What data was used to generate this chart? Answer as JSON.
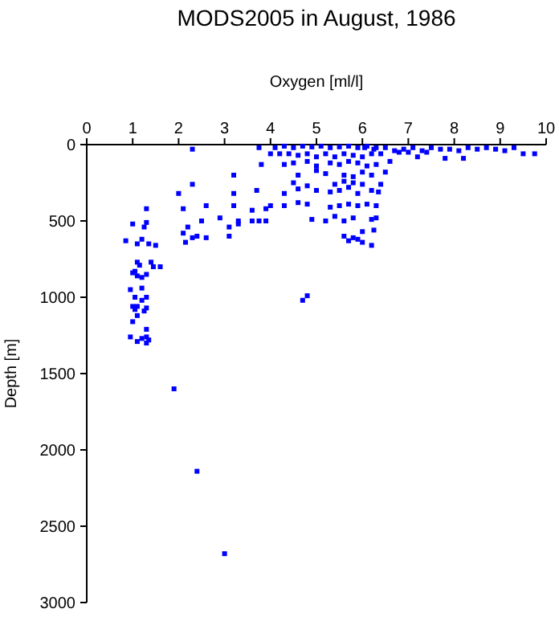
{
  "chart_data": {
    "type": "scatter",
    "title": "MODS2005 in August, 1986",
    "xlabel": "Oxygen [ml/l]",
    "ylabel": "Depth [m]",
    "xlim": [
      0,
      10
    ],
    "xticks": [
      0,
      1,
      2,
      3,
      4,
      5,
      6,
      7,
      8,
      9,
      10
    ],
    "ylim": [
      3000,
      0
    ],
    "yticks": [
      0,
      500,
      1000,
      1500,
      2000,
      2500,
      3000
    ],
    "grid": false,
    "marker": "square",
    "series": [
      {
        "color": "#0000ff",
        "x": [
          1.0,
          0.85,
          1.1,
          1.2,
          1.35,
          1.3,
          1.3,
          1.25,
          1.5,
          1.4,
          1.45,
          1.6,
          1.1,
          1.15,
          1.0,
          1.05,
          1.1,
          1.2,
          1.3,
          0.95,
          1.2,
          1.05,
          1.3,
          1.2,
          1.0,
          1.05,
          1.1,
          1.3,
          1.25,
          1.1,
          1.0,
          1.3,
          0.95,
          1.1,
          1.2,
          1.3,
          1.35,
          1.3,
          1.9,
          2.4,
          3.0,
          2.3,
          2.3,
          2.0,
          2.1,
          2.1,
          2.2,
          2.15,
          2.3,
          2.4,
          2.6,
          2.5,
          2.6,
          2.9,
          3.1,
          3.1,
          3.2,
          3.2,
          3.2,
          3.3,
          3.3,
          3.6,
          3.6,
          3.75,
          3.9,
          3.7,
          3.9,
          4.0,
          4.3,
          3.8,
          3.75,
          4.7,
          4.8,
          4.1,
          4.3,
          4.5,
          4.7,
          4.9,
          5.1,
          5.3,
          5.5,
          5.7,
          5.9,
          6.1,
          6.3,
          6.5,
          6.7,
          4.0,
          4.2,
          4.4,
          4.6,
          4.8,
          5.0,
          5.2,
          5.4,
          5.6,
          5.8,
          6.0,
          6.2,
          6.4,
          6.6,
          4.3,
          4.5,
          4.8,
          5.0,
          5.3,
          5.5,
          5.7,
          5.9,
          6.1,
          6.3,
          6.5,
          4.6,
          5.0,
          5.2,
          5.6,
          5.8,
          6.0,
          6.2,
          6.4,
          4.5,
          4.8,
          5.4,
          5.6,
          5.8,
          6.0,
          6.2,
          6.35,
          4.3,
          4.6,
          5.0,
          5.3,
          5.5,
          5.7,
          5.9,
          6.1,
          6.3,
          4.6,
          4.8,
          5.3,
          5.5,
          5.7,
          5.9,
          6.2,
          6.3,
          4.9,
          5.2,
          5.4,
          5.6,
          5.8,
          6.0,
          6.25,
          5.6,
          5.8,
          6.0,
          6.2,
          5.7,
          5.9,
          6.05,
          6.25,
          6.9,
          7.1,
          7.3,
          7.5,
          7.7,
          7.9,
          8.1,
          8.3,
          8.5,
          8.7,
          8.9,
          9.1,
          9.3,
          9.5,
          9.75,
          7.0,
          7.4,
          7.8,
          8.2,
          6.8,
          7.2
        ],
        "values": [
          520,
          630,
          650,
          620,
          650,
          420,
          510,
          540,
          660,
          770,
          800,
          800,
          770,
          790,
          840,
          830,
          860,
          870,
          850,
          950,
          940,
          1000,
          1000,
          1020,
          1060,
          1080,
          1060,
          1070,
          1090,
          1120,
          1160,
          1210,
          1260,
          1290,
          1270,
          1260,
          1280,
          1300,
          1600,
          2140,
          2680,
          30,
          260,
          320,
          420,
          580,
          540,
          640,
          610,
          600,
          610,
          500,
          400,
          480,
          540,
          600,
          200,
          320,
          400,
          500,
          520,
          430,
          500,
          500,
          500,
          300,
          420,
          400,
          400,
          130,
          20,
          1020,
          990,
          20,
          10,
          20,
          10,
          15,
          10,
          20,
          15,
          10,
          20,
          10,
          20,
          20,
          40,
          60,
          60,
          60,
          70,
          60,
          80,
          60,
          80,
          60,
          70,
          80,
          60,
          60,
          110,
          130,
          120,
          110,
          140,
          120,
          130,
          110,
          120,
          140,
          130,
          180,
          200,
          170,
          190,
          200,
          210,
          180,
          200,
          260,
          250,
          270,
          260,
          240,
          250,
          260,
          300,
          310,
          320,
          290,
          300,
          310,
          300,
          280,
          320,
          390,
          400,
          380,
          390,
          410,
          400,
          390,
          400,
          490,
          480,
          490,
          500,
          470,
          500,
          480,
          570,
          560,
          600,
          610,
          640,
          660,
          630,
          620,
          20,
          30,
          30,
          20,
          40,
          20,
          30,
          30,
          40,
          20,
          30,
          20,
          30,
          40,
          20,
          60,
          60,
          50,
          50,
          90,
          90,
          50,
          80
        ]
      }
    ]
  }
}
